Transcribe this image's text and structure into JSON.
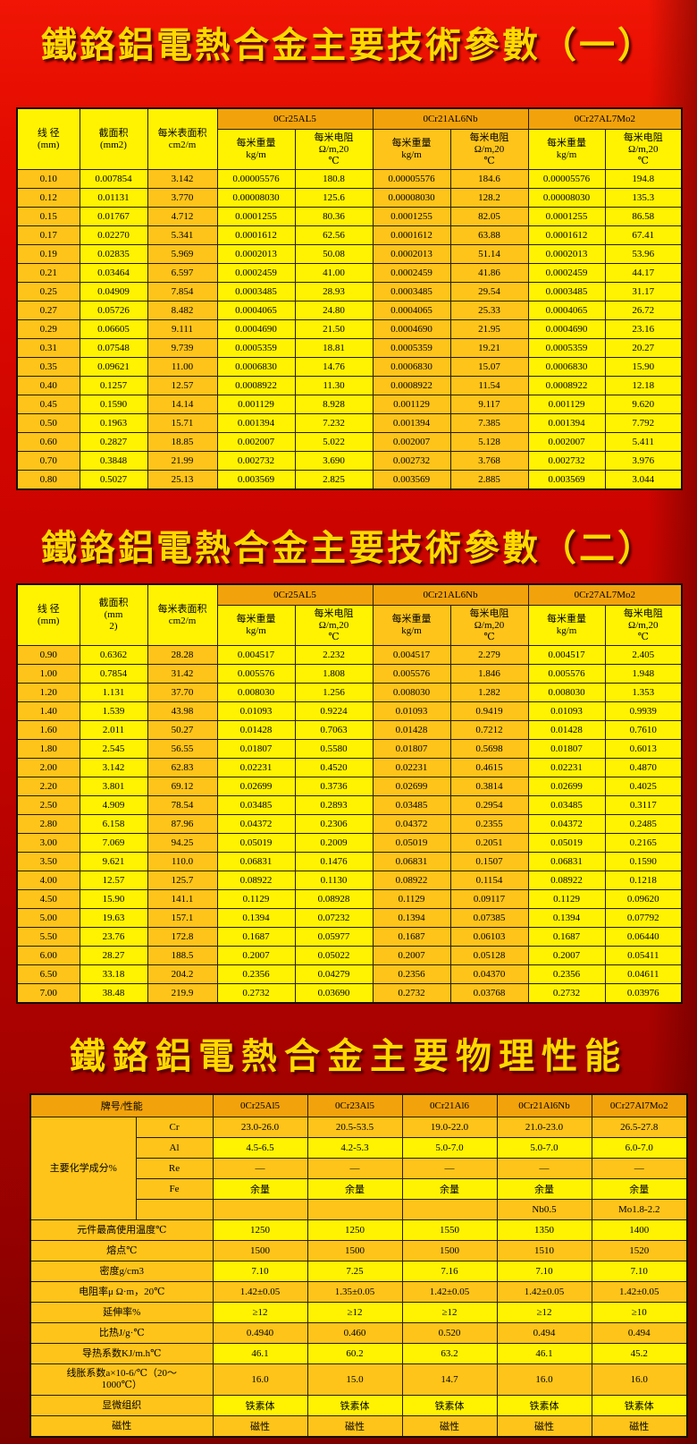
{
  "titles": {
    "t1": "鐵鉻鋁電熱合金主要技術參數（一）",
    "t2": "鐵鉻鋁電熱合金主要技術參數（二）",
    "t3": "鐵鉻鋁電熱合金主要物理性能"
  },
  "colors": {
    "background_red_top": "#f01505",
    "background_red_bottom": "#7e0100",
    "title_yellow": "#ffd900",
    "cell_yellow": "#fff301",
    "cell_gold": "#fec41a",
    "header_orange": "#f2a20b",
    "border_black": "#2a1d00"
  },
  "table1": {
    "headers": {
      "diameter": "线 径\n(mm)",
      "area": "截面积\n(mm2)",
      "surface": "每米表面积\ncm2/m",
      "weight": "每米重量\nkg/m",
      "resistance": "每米电阻\nΩ/m,20\n℃"
    },
    "alloys": [
      "0Cr25AL5",
      "0Cr21AL6Nb",
      "0Cr27AL7Mo2"
    ],
    "rows": [
      [
        "0.10",
        "0.007854",
        "3.142",
        "0.00005576",
        "180.8",
        "0.00005576",
        "184.6",
        "0.00005576",
        "194.8"
      ],
      [
        "0.12",
        "0.01131",
        "3.770",
        "0.00008030",
        "125.6",
        "0.00008030",
        "128.2",
        "0.00008030",
        "135.3"
      ],
      [
        "0.15",
        "0.01767",
        "4.712",
        "0.0001255",
        "80.36",
        "0.0001255",
        "82.05",
        "0.0001255",
        "86.58"
      ],
      [
        "0.17",
        "0.02270",
        "5.341",
        "0.0001612",
        "62.56",
        "0.0001612",
        "63.88",
        "0.0001612",
        "67.41"
      ],
      [
        "0.19",
        "0.02835",
        "5.969",
        "0.0002013",
        "50.08",
        "0.0002013",
        "51.14",
        "0.0002013",
        "53.96"
      ],
      [
        "0.21",
        "0.03464",
        "6.597",
        "0.0002459",
        "41.00",
        "0.0002459",
        "41.86",
        "0.0002459",
        "44.17"
      ],
      [
        "0.25",
        "0.04909",
        "7.854",
        "0.0003485",
        "28.93",
        "0.0003485",
        "29.54",
        "0.0003485",
        "31.17"
      ],
      [
        "0.27",
        "0.05726",
        "8.482",
        "0.0004065",
        "24.80",
        "0.0004065",
        "25.33",
        "0.0004065",
        "26.72"
      ],
      [
        "0.29",
        "0.06605",
        "9.111",
        "0.0004690",
        "21.50",
        "0.0004690",
        "21.95",
        "0.0004690",
        "23.16"
      ],
      [
        "0.31",
        "0.07548",
        "9.739",
        "0.0005359",
        "18.81",
        "0.0005359",
        "19.21",
        "0.0005359",
        "20.27"
      ],
      [
        "0.35",
        "0.09621",
        "11.00",
        "0.0006830",
        "14.76",
        "0.0006830",
        "15.07",
        "0.0006830",
        "15.90"
      ],
      [
        "0.40",
        "0.1257",
        "12.57",
        "0.0008922",
        "11.30",
        "0.0008922",
        "11.54",
        "0.0008922",
        "12.18"
      ],
      [
        "0.45",
        "0.1590",
        "14.14",
        "0.001129",
        "8.928",
        "0.001129",
        "9.117",
        "0.001129",
        "9.620"
      ],
      [
        "0.50",
        "0.1963",
        "15.71",
        "0.001394",
        "7.232",
        "0.001394",
        "7.385",
        "0.001394",
        "7.792"
      ],
      [
        "0.60",
        "0.2827",
        "18.85",
        "0.002007",
        "5.022",
        "0.002007",
        "5.128",
        "0.002007",
        "5.411"
      ],
      [
        "0.70",
        "0.3848",
        "21.99",
        "0.002732",
        "3.690",
        "0.002732",
        "3.768",
        "0.002732",
        "3.976"
      ],
      [
        "0.80",
        "0.5027",
        "25.13",
        "0.003569",
        "2.825",
        "0.003569",
        "2.885",
        "0.003569",
        "3.044"
      ]
    ]
  },
  "table2": {
    "headers": {
      "diameter": "线 径\n(mm)",
      "area": "截面积\n(mm\n2)",
      "surface": "每米表面积\ncm2/m",
      "weight": "每米重量\nkg/m",
      "resistance": "每米电阻\nΩ/m,20\n℃"
    },
    "alloys": [
      "0Cr25AL5",
      "0Cr21AL6Nb",
      "0Cr27AL7Mo2"
    ],
    "rows": [
      [
        "0.90",
        "0.6362",
        "28.28",
        "0.004517",
        "2.232",
        "0.004517",
        "2.279",
        "0.004517",
        "2.405"
      ],
      [
        "1.00",
        "0.7854",
        "31.42",
        "0.005576",
        "1.808",
        "0.005576",
        "1.846",
        "0.005576",
        "1.948"
      ],
      [
        "1.20",
        "1.131",
        "37.70",
        "0.008030",
        "1.256",
        "0.008030",
        "1.282",
        "0.008030",
        "1.353"
      ],
      [
        "1.40",
        "1.539",
        "43.98",
        "0.01093",
        "0.9224",
        "0.01093",
        "0.9419",
        "0.01093",
        "0.9939"
      ],
      [
        "1.60",
        "2.011",
        "50.27",
        "0.01428",
        "0.7063",
        "0.01428",
        "0.7212",
        "0.01428",
        "0.7610"
      ],
      [
        "1.80",
        "2.545",
        "56.55",
        "0.01807",
        "0.5580",
        "0.01807",
        "0.5698",
        "0.01807",
        "0.6013"
      ],
      [
        "2.00",
        "3.142",
        "62.83",
        "0.02231",
        "0.4520",
        "0.02231",
        "0.4615",
        "0.02231",
        "0.4870"
      ],
      [
        "2.20",
        "3.801",
        "69.12",
        "0.02699",
        "0.3736",
        "0.02699",
        "0.3814",
        "0.02699",
        "0.4025"
      ],
      [
        "2.50",
        "4.909",
        "78.54",
        "0.03485",
        "0.2893",
        "0.03485",
        "0.2954",
        "0.03485",
        "0.3117"
      ],
      [
        "2.80",
        "6.158",
        "87.96",
        "0.04372",
        "0.2306",
        "0.04372",
        "0.2355",
        "0.04372",
        "0.2485"
      ],
      [
        "3.00",
        "7.069",
        "94.25",
        "0.05019",
        "0.2009",
        "0.05019",
        "0.2051",
        "0.05019",
        "0.2165"
      ],
      [
        "3.50",
        "9.621",
        "110.0",
        "0.06831",
        "0.1476",
        "0.06831",
        "0.1507",
        "0.06831",
        "0.1590"
      ],
      [
        "4.00",
        "12.57",
        "125.7",
        "0.08922",
        "0.1130",
        "0.08922",
        "0.1154",
        "0.08922",
        "0.1218"
      ],
      [
        "4.50",
        "15.90",
        "141.1",
        "0.1129",
        "0.08928",
        "0.1129",
        "0.09117",
        "0.1129",
        "0.09620"
      ],
      [
        "5.00",
        "19.63",
        "157.1",
        "0.1394",
        "0.07232",
        "0.1394",
        "0.07385",
        "0.1394",
        "0.07792"
      ],
      [
        "5.50",
        "23.76",
        "172.8",
        "0.1687",
        "0.05977",
        "0.1687",
        "0.06103",
        "0.1687",
        "0.06440"
      ],
      [
        "6.00",
        "28.27",
        "188.5",
        "0.2007",
        "0.05022",
        "0.2007",
        "0.05128",
        "0.2007",
        "0.05411"
      ],
      [
        "6.50",
        "33.18",
        "204.2",
        "0.2356",
        "0.04279",
        "0.2356",
        "0.04370",
        "0.2356",
        "0.04611"
      ],
      [
        "7.00",
        "38.48",
        "219.9",
        "0.2732",
        "0.03690",
        "0.2732",
        "0.03768",
        "0.2732",
        "0.03976"
      ]
    ]
  },
  "table3": {
    "header": {
      "label": "牌号/性能",
      "alloys": [
        "0Cr25Al5",
        "0Cr23Al5",
        "0Cr21Al6",
        "0Cr21Al6Nb",
        "0Cr27Al7Mo2"
      ]
    },
    "chem": {
      "group_label": "主要化学成分%",
      "rows": [
        {
          "element": "Cr",
          "values": [
            "23.0-26.0",
            "20.5-53.5",
            "19.0-22.0",
            "21.0-23.0",
            "26.5-27.8"
          ],
          "shade": "g"
        },
        {
          "element": "Al",
          "values": [
            "4.5-6.5",
            "4.2-5.3",
            "5.0-7.0",
            "5.0-7.0",
            "6.0-7.0"
          ],
          "shade": "y"
        },
        {
          "element": "Re",
          "values": [
            "—",
            "—",
            "—",
            "—",
            "—"
          ],
          "shade": "g"
        },
        {
          "element": "Fe",
          "values": [
            "余量",
            "余量",
            "余量",
            "余量",
            "余量"
          ],
          "shade": "y"
        },
        {
          "element": "",
          "values": [
            "",
            "",
            "",
            "Nb0.5",
            "Mo1.8-2.2"
          ],
          "shade": "g"
        }
      ]
    },
    "props": [
      {
        "label": "元件最高使用温度℃",
        "values": [
          "1250",
          "1250",
          "1550",
          "1350",
          "1400"
        ],
        "shade": "y"
      },
      {
        "label": "熔点℃",
        "values": [
          "1500",
          "1500",
          "1500",
          "1510",
          "1520"
        ],
        "shade": "g"
      },
      {
        "label": "密度g/cm3",
        "values": [
          "7.10",
          "7.25",
          "7.16",
          "7.10",
          "7.10"
        ],
        "shade": "y"
      },
      {
        "label": "电阻率μ Ω·m，20℃",
        "values": [
          "1.42±0.05",
          "1.35±0.05",
          "1.42±0.05",
          "1.42±0.05",
          "1.42±0.05"
        ],
        "shade": "g"
      },
      {
        "label": "延伸率%",
        "values": [
          "≥12",
          "≥12",
          "≥12",
          "≥12",
          "≥10"
        ],
        "shade": "y"
      },
      {
        "label": "比热J/g·℃",
        "values": [
          "0.4940",
          "0.460",
          "0.520",
          "0.494",
          "0.494"
        ],
        "shade": "g"
      },
      {
        "label": "导热系数KJ/m.h℃",
        "values": [
          "46.1",
          "60.2",
          "63.2",
          "46.1",
          "45.2"
        ],
        "shade": "y"
      },
      {
        "label": "线胀系数a×10-6/℃（20～\n1000℃）",
        "values": [
          "16.0",
          "15.0",
          "14.7",
          "16.0",
          "16.0"
        ],
        "shade": "g",
        "tall": true
      },
      {
        "label": "显微组织",
        "values": [
          "铁素体",
          "铁素体",
          "铁素体",
          "铁素体",
          "铁素体"
        ],
        "shade": "y"
      },
      {
        "label": "磁性",
        "values": [
          "磁性",
          "磁性",
          "磁性",
          "磁性",
          "磁性"
        ],
        "shade": "g"
      }
    ]
  }
}
